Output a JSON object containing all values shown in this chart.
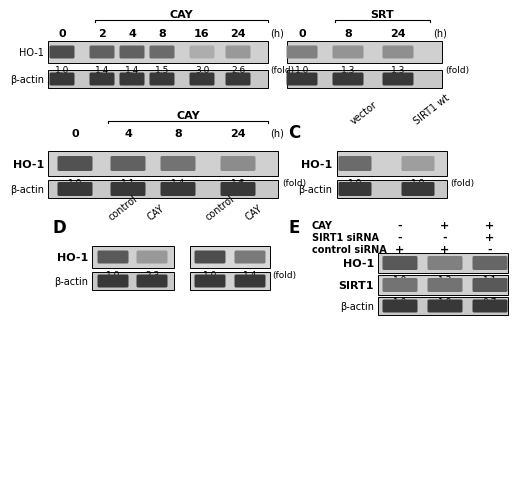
{
  "panel_A_left_label": "CAY",
  "panel_A_left_timepoints": [
    "0",
    "2",
    "4",
    "8",
    "16",
    "24"
  ],
  "panel_A_left_fold": [
    "1.0",
    "1.4",
    "1.4",
    "1.5",
    "3.0",
    "2.6"
  ],
  "panel_A_right_label": "SRT",
  "panel_A_right_timepoints": [
    "0",
    "8",
    "24"
  ],
  "panel_A_right_fold": [
    "1.0",
    "1.3",
    "1.3"
  ],
  "panel_B_label": "CAY",
  "panel_B_timepoints": [
    "0",
    "4",
    "8",
    "24"
  ],
  "panel_B_fold": [
    "1.0",
    "1.1",
    "1.4",
    "1.6"
  ],
  "panel_C_cols": [
    "vector",
    "SIRT1 wt"
  ],
  "panel_C_fold": [
    "1.0",
    "1.9"
  ],
  "panel_D_left_cols": [
    "control",
    "CAY"
  ],
  "panel_D_left_fold": [
    "1.0",
    "2.3"
  ],
  "panel_D_right_cols": [
    "control",
    "CAY"
  ],
  "panel_D_right_fold": [
    "1.0",
    "1.4"
  ],
  "panel_E_HO1_fold": [
    "1.0",
    "1.3",
    "1.1"
  ],
  "panel_E_SIRT1_fold": [
    "1.0",
    "1.0",
    "0.7"
  ],
  "bg_color": "#ffffff"
}
